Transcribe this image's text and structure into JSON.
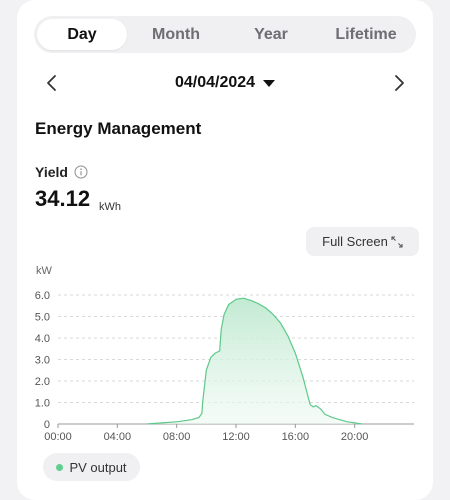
{
  "tabs": [
    {
      "label": "Day",
      "active": true
    },
    {
      "label": "Month",
      "active": false
    },
    {
      "label": "Year",
      "active": false
    },
    {
      "label": "Lifetime",
      "active": false
    }
  ],
  "date": {
    "value": "04/04/2024",
    "prev_icon": "chevron-left-icon",
    "next_icon": "chevron-right-icon",
    "dropdown_icon": "caret-down-icon"
  },
  "section": {
    "title": "Energy Management"
  },
  "yield": {
    "label": "Yield",
    "value": "34.12",
    "unit": "kWh",
    "info_icon": "info-icon"
  },
  "full_screen": {
    "label": "Full Screen",
    "icon": "expand-icon"
  },
  "legend": {
    "label": "PV output",
    "color": "#5fcf8f"
  },
  "colors": {
    "line": "#5cc98a",
    "fill": "#cdeedb",
    "grid": "#d9d9d9",
    "axis_text": "#555555"
  },
  "chart_data": {
    "type": "area",
    "ylabel": "kW",
    "ylim": [
      0,
      6.0
    ],
    "yticks": [
      "0",
      "1.0",
      "2.0",
      "3.0",
      "4.0",
      "5.0",
      "6.0"
    ],
    "xlim": [
      0,
      24
    ],
    "xticks": [
      "00:00",
      "04:00",
      "08:00",
      "12:00",
      "16:00",
      "20:00"
    ],
    "grid": true,
    "series": [
      {
        "name": "PV output",
        "x": [
          6.0,
          7.0,
          8.0,
          9.0,
          9.5,
          9.7,
          9.75,
          10.0,
          10.3,
          10.6,
          10.9,
          11.0,
          11.2,
          11.5,
          12.0,
          12.5,
          13.0,
          13.5,
          14.0,
          14.5,
          15.0,
          15.5,
          16.0,
          16.5,
          17.0,
          17.2,
          17.4,
          17.7,
          18.0,
          18.5,
          19.0,
          19.5,
          20.0,
          20.5
        ],
        "y": [
          0.0,
          0.05,
          0.1,
          0.2,
          0.3,
          0.5,
          1.0,
          2.5,
          3.1,
          3.3,
          3.4,
          4.4,
          5.1,
          5.55,
          5.8,
          5.85,
          5.75,
          5.6,
          5.4,
          5.1,
          4.7,
          4.1,
          3.3,
          2.2,
          0.9,
          0.8,
          0.85,
          0.7,
          0.45,
          0.3,
          0.2,
          0.1,
          0.05,
          0.0
        ]
      }
    ]
  }
}
